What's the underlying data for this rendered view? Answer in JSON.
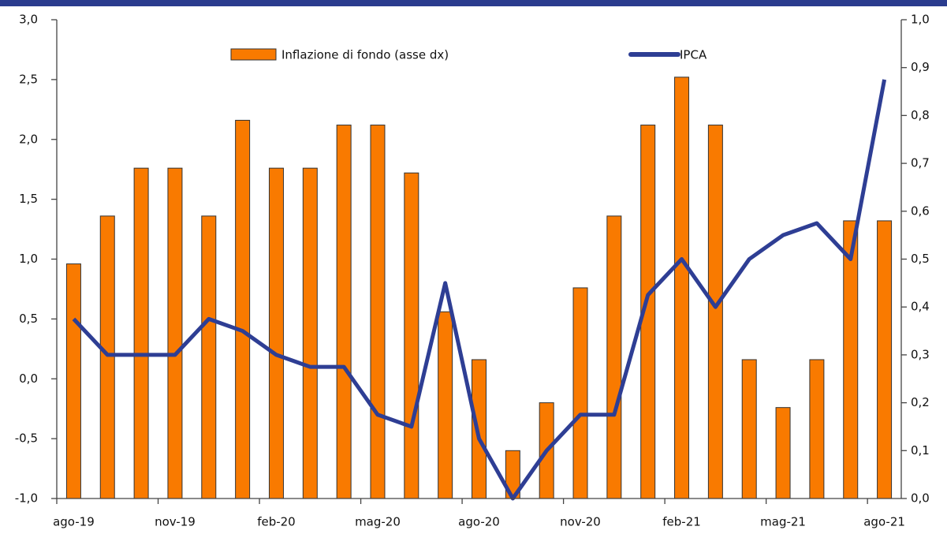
{
  "chart_data": {
    "type": "bar-line",
    "categories": [
      "ago-19",
      null,
      null,
      "nov-19",
      null,
      null,
      "feb-20",
      null,
      null,
      "mag-20",
      null,
      null,
      "ago-20",
      null,
      null,
      "nov-20",
      null,
      null,
      "feb-21",
      null,
      null,
      "mag-21",
      null,
      null,
      "ago-21"
    ],
    "series": [
      {
        "name": "Inflazione di fondo (asse dx)",
        "kind": "bar",
        "axis": "y2",
        "color": "#f97a00",
        "values": [
          0.49,
          0.59,
          0.69,
          0.69,
          0.59,
          0.79,
          0.69,
          0.69,
          0.78,
          0.78,
          0.68,
          0.39,
          0.29,
          0.1,
          0.2,
          0.44,
          0.59,
          0.78,
          0.88,
          0.78,
          0.29,
          0.19,
          0.29,
          0.58,
          0.58
        ]
      },
      {
        "name": "IPCA",
        "kind": "line",
        "color": "#2e3e94",
        "values": [
          0.5,
          0.2,
          0.2,
          0.2,
          0.5,
          0.4,
          0.2,
          0.1,
          0.1,
          -0.3,
          -0.4,
          0.8,
          -0.5,
          -1.0,
          -0.6,
          -0.3,
          -0.3,
          0.7,
          1.0,
          0.6,
          1.0,
          1.2,
          1.3,
          1.0,
          2.5
        ]
      }
    ],
    "ylim": [
      -1,
      3
    ],
    "yticks": [
      {
        "value": -1,
        "label": "-1,0"
      },
      {
        "value": -0.5,
        "label": "-0,5"
      },
      {
        "value": 0,
        "label": "0,0"
      },
      {
        "value": 0.5,
        "label": "0,5"
      },
      {
        "value": 1,
        "label": "1,0"
      },
      {
        "value": 1.5,
        "label": "1,5"
      },
      {
        "value": 2,
        "label": "2,0"
      },
      {
        "value": 2.5,
        "label": "2,5"
      },
      {
        "value": 3,
        "label": "3,0"
      }
    ],
    "y2lim": [
      0,
      1
    ],
    "y2ticks": [
      {
        "value": 0,
        "label": "0,0"
      },
      {
        "value": 0.1,
        "label": "0,1"
      },
      {
        "value": 0.2,
        "label": "0,2"
      },
      {
        "value": 0.3,
        "label": "0,3"
      },
      {
        "value": 0.4,
        "label": "0,4"
      },
      {
        "value": 0.5,
        "label": "0,5"
      },
      {
        "value": 0.6,
        "label": "0,6"
      },
      {
        "value": 0.7,
        "label": "0,7"
      },
      {
        "value": 0.8,
        "label": "0,8"
      },
      {
        "value": 0.9,
        "label": "0,9"
      },
      {
        "value": 1,
        "label": "1,0"
      }
    ],
    "grid": false
  }
}
